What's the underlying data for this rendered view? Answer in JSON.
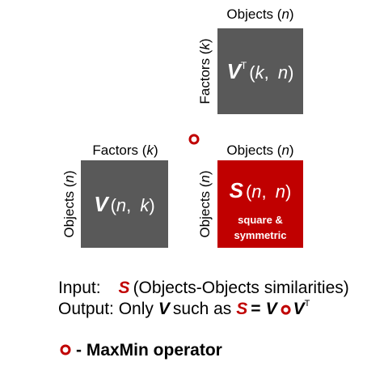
{
  "matrices": [
    {
      "column_label": [
        "Objects (",
        "n",
        ")"
      ],
      "row_label": [
        "Factors (",
        "k",
        ")"
      ],
      "symbol": "V",
      "superscript": "T",
      "dims": [
        "(",
        "k",
        ", ",
        "n",
        ")"
      ]
    },
    {
      "column_label": [
        "Factors (",
        "k",
        ")"
      ],
      "row_label": [
        "Objects (",
        "n",
        ")"
      ],
      "symbol": "V",
      "dims": [
        "(",
        "n",
        ", ",
        "k",
        ")"
      ]
    },
    {
      "column_label": [
        "Objects (",
        "n",
        ")"
      ],
      "row_label": [
        "Objects (",
        "n",
        ")"
      ],
      "symbol": "S",
      "dims": [
        "(",
        "n",
        ", ",
        "n",
        ")"
      ],
      "caption": [
        "square &",
        "symmetric"
      ]
    }
  ],
  "input": [
    "Input:",
    "S",
    "(Objects-Objects similarities)"
  ],
  "output": [
    "Output: Only",
    "V",
    "such as",
    "S",
    "=",
    "V",
    "V",
    "T"
  ],
  "legend": "- MaxMin operator"
}
